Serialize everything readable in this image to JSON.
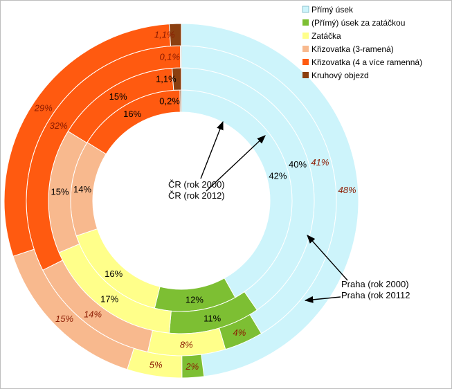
{
  "chart_data": {
    "type": "donut",
    "categories": [
      "Přímý úsek",
      "(Přímý) úsek za zatáčkou",
      "Zatáčka",
      "Křizovatka (3-ramená)",
      "Křizovatka (4 a více ramenná)",
      "Kruhový objezd"
    ],
    "colors": [
      "#cdf4fb",
      "#7dbf33",
      "#ffff8a",
      "#f8b98e",
      "#ff5a10",
      "#8b3f10"
    ],
    "series": [
      {
        "name": "ČR (rok 2000)",
        "values": [
          42,
          12,
          16,
          14,
          16,
          0.2
        ],
        "labels": [
          "42%",
          "12%",
          "16%",
          "14%",
          "16%",
          "0,2%"
        ]
      },
      {
        "name": "ČR (rok 2012)",
        "values": [
          40,
          11,
          17,
          15,
          15,
          1.1
        ],
        "labels": [
          "40%",
          "11%",
          "17%",
          "15%",
          "15%",
          "1,1%"
        ]
      },
      {
        "name": "Praha (rok 2000)",
        "values": [
          41,
          4,
          8,
          14,
          32,
          0.1
        ],
        "labels": [
          "41%",
          "4%",
          "8%",
          "14%",
          "32%",
          "0,1%"
        ]
      },
      {
        "name": "Praha (rok 20112",
        "values": [
          48,
          2,
          5,
          15,
          29,
          1.1
        ],
        "labels": [
          "48%",
          "2%",
          "5%",
          "15%",
          "29%",
          "1,1%"
        ]
      }
    ],
    "annotations": {
      "cr_labels": [
        "ČR (rok 2000)",
        "ČR (rok 2012)"
      ],
      "praha_labels": [
        "Praha (rok 2000)",
        "Praha (rok 20112"
      ]
    },
    "legend": "top-right"
  }
}
